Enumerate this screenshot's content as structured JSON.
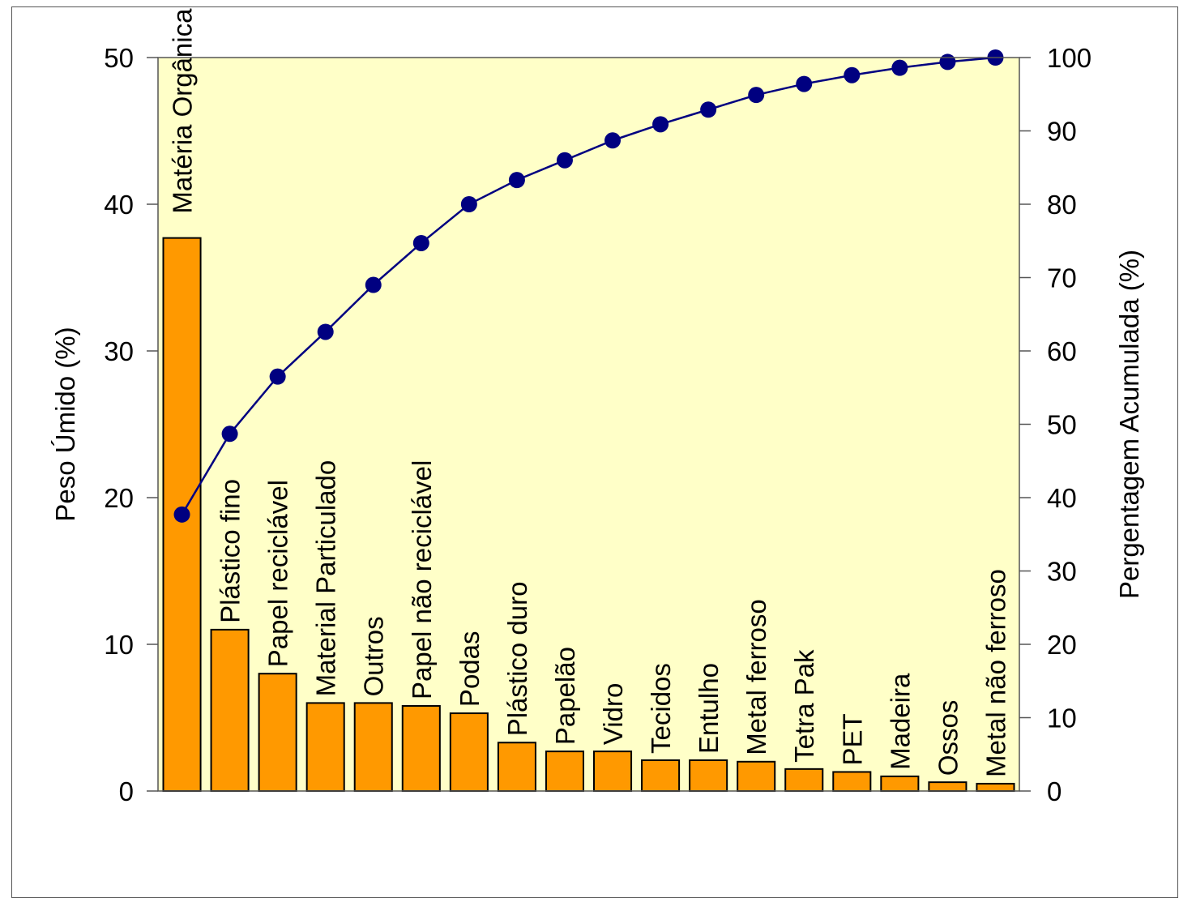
{
  "chart_data": {
    "type": "bar",
    "categories": [
      "Matéria Orgânica",
      "Plástico fino",
      "Papel reciclável",
      "Material Particulado",
      "Outros",
      "Papel não reciclável",
      "Podas",
      "Plástico duro",
      "Papelão",
      "Vidro",
      "Tecidos",
      "Entulho",
      "Metal ferroso",
      "Tetra Pak",
      "PET",
      "Madeira",
      "Ossos",
      "Metal não ferroso"
    ],
    "series": [
      {
        "type": "bar",
        "axis": "left",
        "values": [
          37.7,
          11.0,
          8.0,
          6.0,
          6.0,
          5.8,
          5.3,
          3.3,
          2.7,
          2.7,
          2.1,
          2.1,
          2.0,
          1.5,
          1.3,
          1.0,
          0.6,
          0.5
        ]
      },
      {
        "type": "line",
        "axis": "right",
        "values": [
          37.7,
          48.7,
          56.5,
          62.6,
          69.0,
          74.7,
          80.0,
          83.3,
          86.0,
          88.7,
          90.9,
          92.9,
          94.9,
          96.4,
          97.6,
          98.6,
          99.4,
          100.0
        ]
      }
    ],
    "ylabel": "Peso Úmido (%)",
    "y2label": "Pergentagem Acumulada (%)",
    "ylim": [
      0,
      50
    ],
    "y2lim": [
      0,
      100
    ],
    "yticks": [
      0,
      10,
      20,
      30,
      40,
      50
    ],
    "y2ticks": [
      0,
      10,
      20,
      30,
      40,
      50,
      60,
      70,
      80,
      90,
      100
    ],
    "grid": false,
    "legend": "none",
    "colors": {
      "plot_background": "#ffffc8",
      "bar_fill": "#ff9900",
      "bar_stroke": "#000000",
      "line": "#000080",
      "marker": "#000080"
    }
  }
}
